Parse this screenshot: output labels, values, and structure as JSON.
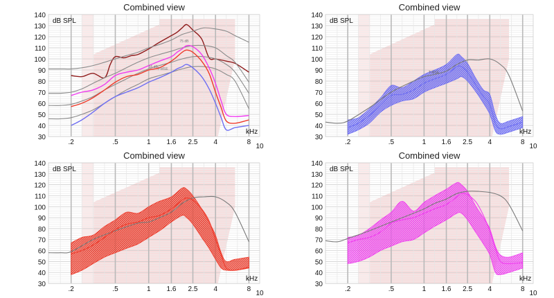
{
  "panels_meta": {
    "title": "Combined view",
    "ylabel": "dB SPL",
    "xunit": "kHz",
    "y_ticks": [
      "140",
      "130",
      "120",
      "110",
      "100",
      "90",
      "80",
      "70",
      "60",
      "50",
      "40",
      "30"
    ],
    "x_ticks": [
      ".2",
      ".5",
      "1",
      "1.6",
      "2.5",
      "4",
      "8"
    ],
    "x_extra_tick": "10",
    "inline_labels": [
      "75 dB",
      "55 dB",
      "T-MSE"
    ]
  },
  "colors": {
    "blue": "#6f6ff2",
    "red": "#ee3a2a",
    "magenta": "#f03cf0",
    "darkred": "#8e1b1b",
    "gray": "#8a8a8a",
    "zone": "#f7dede",
    "grid": "#d9d9d9"
  },
  "chart_data": [
    {
      "type": "line",
      "title": "Combined view",
      "ylabel": "dB SPL",
      "xlabel": "kHz",
      "xscale": "log",
      "xlim": [
        0.125,
        10
      ],
      "ylim": [
        30,
        140
      ],
      "grid": true,
      "series": [
        {
          "color": "darkred",
          "style": "line",
          "x": [
            0.2,
            0.25,
            0.315,
            0.4,
            0.45,
            0.5,
            0.6,
            0.7,
            0.8,
            1,
            1.25,
            1.6,
            1.8,
            2,
            2.2,
            2.5,
            3,
            3.5,
            4,
            5,
            6,
            8
          ],
          "y": [
            85,
            84,
            87,
            83,
            95,
            102,
            101,
            103,
            104,
            109,
            115,
            121,
            124,
            128,
            131,
            126,
            118,
            101,
            100,
            98,
            96,
            88
          ]
        },
        {
          "color": "gray",
          "style": "line",
          "x": [
            0.125,
            0.16,
            0.2,
            0.25,
            0.315,
            0.4,
            0.5,
            0.63,
            0.8,
            1,
            1.25,
            1.6,
            2,
            2.5,
            3.15,
            4,
            5,
            6,
            8
          ],
          "y": [
            91,
            91,
            91,
            92,
            94,
            97,
            100,
            103,
            106,
            110,
            113,
            117,
            122,
            125,
            128,
            127,
            125,
            121,
            115
          ]
        },
        {
          "color": "gray",
          "style": "line",
          "x": [
            0.125,
            0.16,
            0.2,
            0.25,
            0.315,
            0.4,
            0.5,
            0.63,
            0.8,
            1,
            1.25,
            1.6,
            2,
            2.5,
            3.15,
            4,
            5,
            6,
            8
          ],
          "y": [
            69,
            69,
            70,
            73,
            78,
            83,
            87,
            92,
            97,
            101,
            104,
            107,
            110,
            112,
            112,
            110,
            103,
            97,
            79
          ]
        },
        {
          "color": "gray",
          "style": "line",
          "x": [
            0.125,
            0.16,
            0.2,
            0.25,
            0.315,
            0.4,
            0.5,
            0.63,
            0.8,
            1,
            1.25,
            1.6,
            2,
            2.5,
            3.15,
            4,
            5,
            6,
            8
          ],
          "y": [
            58,
            58,
            59,
            62,
            66,
            72,
            77,
            82,
            87,
            91,
            94,
            97,
            100,
            102,
            102,
            100,
            95,
            88,
            69
          ]
        },
        {
          "color": "gray",
          "style": "line",
          "x": [
            0.125,
            0.16,
            0.2,
            0.25,
            0.315,
            0.4,
            0.5,
            0.63,
            0.8,
            1,
            1.25,
            1.6,
            2,
            2.5,
            3.15,
            4,
            5,
            6,
            8
          ],
          "y": [
            46,
            46,
            47,
            50,
            54,
            60,
            66,
            72,
            77,
            82,
            85,
            88,
            91,
            93,
            93,
            91,
            86,
            80,
            55
          ]
        },
        {
          "color": "magenta",
          "style": "line",
          "x": [
            0.2,
            0.25,
            0.315,
            0.4,
            0.5,
            0.63,
            0.8,
            1,
            1.25,
            1.6,
            1.8,
            2,
            2.2,
            2.5,
            3,
            3.5,
            4,
            4.5,
            5,
            6,
            8
          ],
          "y": [
            67,
            70,
            72,
            77,
            85,
            88,
            90,
            94,
            98,
            102,
            106,
            109,
            112,
            111,
            104,
            92,
            78,
            62,
            50,
            48,
            49
          ]
        },
        {
          "color": "red",
          "style": "line",
          "x": [
            0.2,
            0.25,
            0.315,
            0.4,
            0.5,
            0.63,
            0.8,
            1,
            1.25,
            1.6,
            1.8,
            2,
            2.2,
            2.5,
            3,
            3.5,
            4,
            4.5,
            5,
            6,
            8
          ],
          "y": [
            57,
            60,
            65,
            72,
            79,
            84,
            86,
            90,
            92,
            98,
            102,
            106,
            108,
            106,
            98,
            87,
            70,
            56,
            44,
            42,
            45
          ]
        },
        {
          "color": "blue",
          "style": "line",
          "x": [
            0.2,
            0.25,
            0.315,
            0.4,
            0.5,
            0.63,
            0.8,
            1,
            1.25,
            1.6,
            1.8,
            2,
            2.2,
            2.5,
            3,
            3.5,
            4,
            4.5,
            5,
            6,
            8
          ],
          "y": [
            40,
            45,
            52,
            60,
            66,
            70,
            74,
            79,
            83,
            88,
            91,
            93,
            95,
            92,
            84,
            73,
            60,
            47,
            36,
            38,
            40
          ]
        }
      ]
    },
    {
      "type": "area",
      "title": "Combined view",
      "ylabel": "dB SPL",
      "xlabel": "kHz",
      "xscale": "log",
      "xlim": [
        0.125,
        10
      ],
      "ylim": [
        30,
        140
      ],
      "grid": true,
      "band": {
        "color": "blue",
        "x": [
          0.2,
          0.25,
          0.315,
          0.4,
          0.5,
          0.63,
          0.8,
          1,
          1.25,
          1.6,
          2,
          2.2,
          2.5,
          3,
          3.5,
          4,
          4.5,
          5,
          6,
          8
        ],
        "upper": [
          45,
          47,
          55,
          65,
          76,
          74,
          80,
          86,
          90,
          95,
          104,
          102,
          96,
          82,
          72,
          68,
          50,
          42,
          44,
          48
        ],
        "lower": [
          32,
          36,
          42,
          52,
          58,
          62,
          64,
          70,
          74,
          78,
          82,
          84,
          80,
          70,
          60,
          50,
          35,
          32,
          34,
          38
        ],
        "mid": [
          38,
          42,
          49,
          58,
          67,
          68,
          72,
          78,
          82,
          86,
          93,
          93,
          88,
          76,
          66,
          59,
          42,
          37,
          39,
          43
        ]
      },
      "reference": {
        "x": [
          0.125,
          0.16,
          0.2,
          0.315,
          0.5,
          0.8,
          1,
          1.25,
          1.6,
          2,
          2.5,
          3.15,
          4,
          5,
          6,
          8
        ],
        "y": [
          43,
          42,
          44,
          56,
          70,
          80,
          84,
          86,
          89,
          95,
          99,
          99,
          100,
          95,
          85,
          53
        ]
      },
      "reference_label": "T-MSE"
    },
    {
      "type": "area",
      "title": "Combined view",
      "ylabel": "dB SPL",
      "xlabel": "kHz",
      "xscale": "log",
      "xlim": [
        0.125,
        10
      ],
      "ylim": [
        30,
        140
      ],
      "grid": true,
      "band": {
        "color": "red",
        "x": [
          0.2,
          0.25,
          0.315,
          0.4,
          0.5,
          0.63,
          0.8,
          1,
          1.25,
          1.6,
          2,
          2.2,
          2.5,
          3,
          3.5,
          4,
          4.5,
          5,
          6,
          8
        ],
        "upper": [
          67,
          72,
          74,
          82,
          88,
          95,
          94,
          100,
          105,
          109,
          117,
          116,
          110,
          98,
          86,
          74,
          58,
          50,
          52,
          54
        ],
        "lower": [
          38,
          42,
          48,
          54,
          58,
          62,
          66,
          72,
          78,
          86,
          92,
          90,
          84,
          72,
          62,
          52,
          44,
          42,
          42,
          44
        ],
        "mid": [
          57,
          60,
          65,
          72,
          79,
          84,
          86,
          90,
          92,
          98,
          106,
          108,
          106,
          98,
          87,
          70,
          56,
          44,
          42,
          45
        ]
      },
      "reference": {
        "x": [
          0.125,
          0.16,
          0.2,
          0.315,
          0.5,
          0.8,
          1,
          1.25,
          1.6,
          2,
          2.5,
          3.15,
          4,
          5,
          6,
          8
        ],
        "y": [
          58,
          58,
          59,
          70,
          78,
          85,
          86,
          90,
          95,
          103,
          108,
          109,
          109,
          104,
          95,
          68
        ]
      }
    },
    {
      "type": "area",
      "title": "Combined view",
      "ylabel": "dB SPL",
      "xlabel": "kHz",
      "xscale": "log",
      "xlim": [
        0.125,
        10
      ],
      "ylim": [
        30,
        140
      ],
      "grid": true,
      "band": {
        "color": "magenta",
        "x": [
          0.2,
          0.25,
          0.315,
          0.4,
          0.5,
          0.63,
          0.8,
          1,
          1.25,
          1.6,
          2,
          2.2,
          2.5,
          3,
          3.5,
          4,
          4.5,
          5,
          6,
          8
        ],
        "upper": [
          72,
          74,
          80,
          88,
          95,
          105,
          96,
          104,
          110,
          116,
          122,
          120,
          114,
          100,
          90,
          80,
          64,
          56,
          54,
          58
        ],
        "lower": [
          48,
          50,
          54,
          60,
          64,
          68,
          70,
          76,
          82,
          88,
          94,
          94,
          88,
          76,
          66,
          56,
          40,
          38,
          40,
          44
        ],
        "mid": [
          67,
          70,
          72,
          77,
          85,
          88,
          90,
          94,
          98,
          102,
          109,
          112,
          111,
          104,
          92,
          78,
          62,
          50,
          48,
          49
        ]
      },
      "reference": {
        "x": [
          0.125,
          0.16,
          0.2,
          0.315,
          0.5,
          0.8,
          1,
          1.25,
          1.6,
          2,
          2.5,
          3.15,
          4,
          5,
          6,
          8
        ],
        "y": [
          69,
          68,
          71,
          78,
          86,
          94,
          98,
          103,
          107,
          112,
          114,
          114,
          113,
          110,
          102,
          78
        ]
      }
    }
  ]
}
